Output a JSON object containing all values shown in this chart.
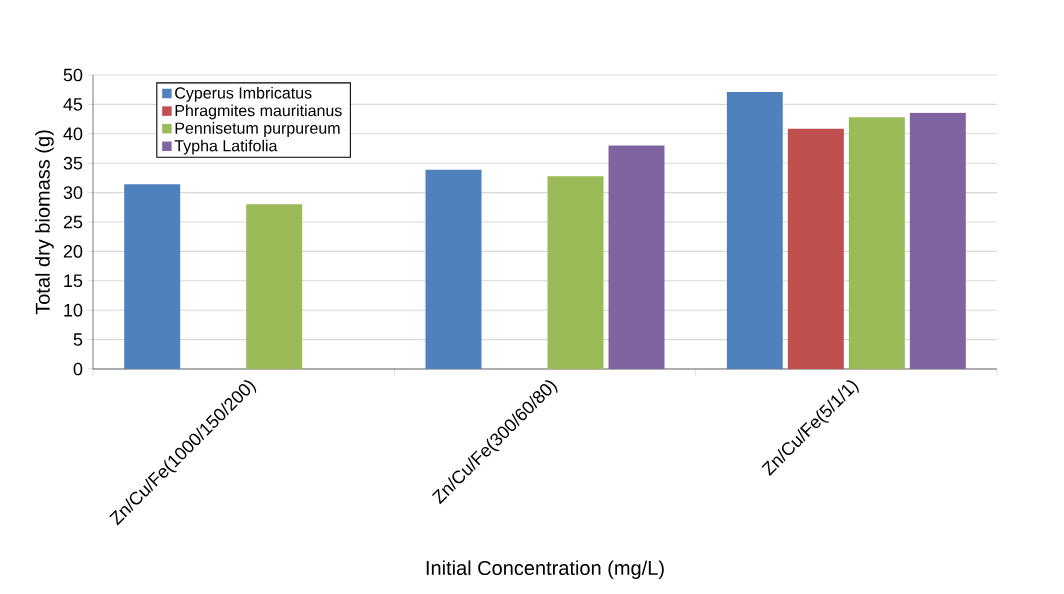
{
  "chart_data": {
    "type": "bar",
    "xlabel": "Initial Concentration (mg/L)",
    "ylabel": "Total dry biomass (g)",
    "categories": [
      "Zn/Cu/Fe(1000/150/200)",
      "Zn/Cu/Fe(300/60/80)",
      "Zn/Cu/Fe(5/1/1)"
    ],
    "series": [
      {
        "name": "Cyperus Imbricatus",
        "color": "#4f81bd",
        "values": [
          31.4,
          33.9,
          47.1
        ]
      },
      {
        "name": "Phragmites mauritianus",
        "color": "#c0504d",
        "values": [
          null,
          null,
          40.9
        ]
      },
      {
        "name": "Pennisetum purpureum",
        "color": "#9bbb59",
        "values": [
          28.0,
          32.8,
          42.8
        ]
      },
      {
        "name": "Typha Latifolia",
        "color": "#8064a2",
        "values": [
          null,
          38.0,
          43.6
        ]
      }
    ],
    "ylim": [
      0,
      50
    ],
    "yticks": [
      0,
      5,
      10,
      15,
      20,
      25,
      30,
      35,
      40,
      45,
      50
    ],
    "grid": "y",
    "legend": "top left"
  }
}
